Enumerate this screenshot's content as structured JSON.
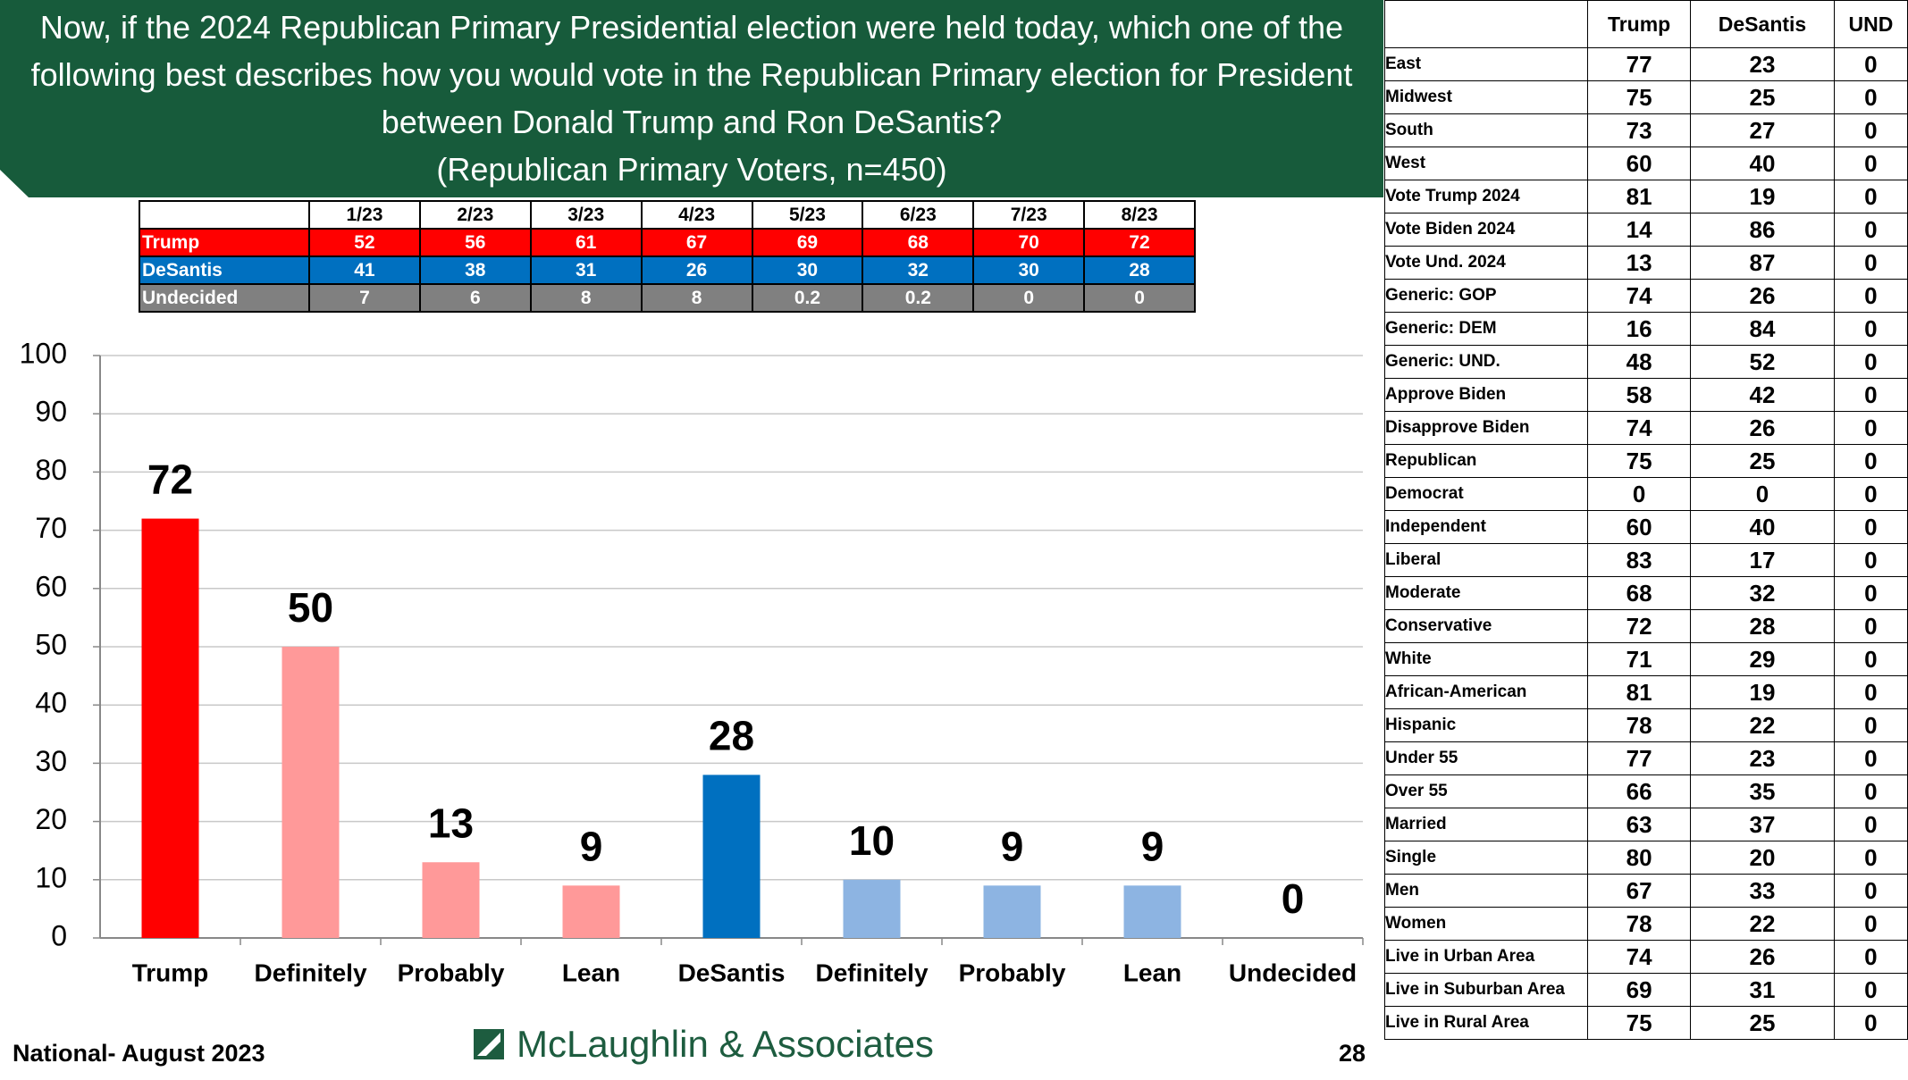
{
  "chart_data": {
    "type": "bar",
    "title": "Now, if the 2024 Republican Primary Presidential election were held today, which one of the following best describes how you would vote in the Republican Primary election for President between Donald Trump and Ron DeSantis?",
    "subtitle": "(Republican Primary Voters, n=450)",
    "categories": [
      "Trump",
      "Definitely",
      "Probably",
      "Lean",
      "DeSantis",
      "Definitely",
      "Probably",
      "Lean",
      "Undecided"
    ],
    "values": [
      72,
      50,
      13,
      9,
      28,
      10,
      9,
      9,
      0
    ],
    "colors": [
      "#ff0000",
      "#ff9999",
      "#ff9999",
      "#ff9999",
      "#0070c0",
      "#8db4e2",
      "#8db4e2",
      "#8db4e2",
      "#8db4e2"
    ],
    "ylim": [
      0,
      100
    ],
    "yticks": [
      0,
      10,
      20,
      30,
      40,
      50,
      60,
      70,
      80,
      90,
      100
    ],
    "grid": true
  },
  "trend_table": {
    "columns": [
      "1/23",
      "2/23",
      "3/23",
      "4/23",
      "5/23",
      "6/23",
      "7/23",
      "8/23"
    ],
    "rows": [
      {
        "label": "Trump",
        "color": "#ff0000",
        "values": [
          52,
          56,
          61,
          67,
          69,
          68,
          70,
          72
        ]
      },
      {
        "label": "DeSantis",
        "color": "#0070c0",
        "values": [
          41,
          38,
          31,
          26,
          30,
          32,
          30,
          28
        ]
      },
      {
        "label": "Undecided",
        "color": "#808080",
        "values": [
          7,
          6,
          8,
          8,
          0.2,
          0.2,
          0,
          0
        ]
      }
    ]
  },
  "crosstab": {
    "columns": [
      "Trump",
      "DeSantis",
      "UND"
    ],
    "rows": [
      [
        "East",
        77,
        23,
        0
      ],
      [
        "Midwest",
        75,
        25,
        0
      ],
      [
        "South",
        73,
        27,
        0
      ],
      [
        "West",
        60,
        40,
        0
      ],
      [
        "Vote Trump 2024",
        81,
        19,
        0
      ],
      [
        "Vote Biden 2024",
        14,
        86,
        0
      ],
      [
        "Vote Und. 2024",
        13,
        87,
        0
      ],
      [
        "Generic: GOP",
        74,
        26,
        0
      ],
      [
        "Generic: DEM",
        16,
        84,
        0
      ],
      [
        "Generic: UND.",
        48,
        52,
        0
      ],
      [
        "Approve Biden",
        58,
        42,
        0
      ],
      [
        "Disapprove Biden",
        74,
        26,
        0
      ],
      [
        "Republican",
        75,
        25,
        0
      ],
      [
        "Democrat",
        0,
        0,
        0
      ],
      [
        "Independent",
        60,
        40,
        0
      ],
      [
        "Liberal",
        83,
        17,
        0
      ],
      [
        "Moderate",
        68,
        32,
        0
      ],
      [
        "Conservative",
        72,
        28,
        0
      ],
      [
        "White",
        71,
        29,
        0
      ],
      [
        "African-American",
        81,
        19,
        0
      ],
      [
        "Hispanic",
        78,
        22,
        0
      ],
      [
        "Under 55",
        77,
        23,
        0
      ],
      [
        "Over 55",
        66,
        35,
        0
      ],
      [
        "Married",
        63,
        37,
        0
      ],
      [
        "Single",
        80,
        20,
        0
      ],
      [
        "Men",
        67,
        33,
        0
      ],
      [
        "Women",
        78,
        22,
        0
      ],
      [
        "Live in Urban Area",
        74,
        26,
        0
      ],
      [
        "Live in Suburban Area",
        69,
        31,
        0
      ],
      [
        "Live in Rural Area",
        75,
        25,
        0
      ]
    ]
  },
  "footer": {
    "left": "National- August 2023",
    "logo": "McLaughlin & Associates",
    "page": 28
  }
}
